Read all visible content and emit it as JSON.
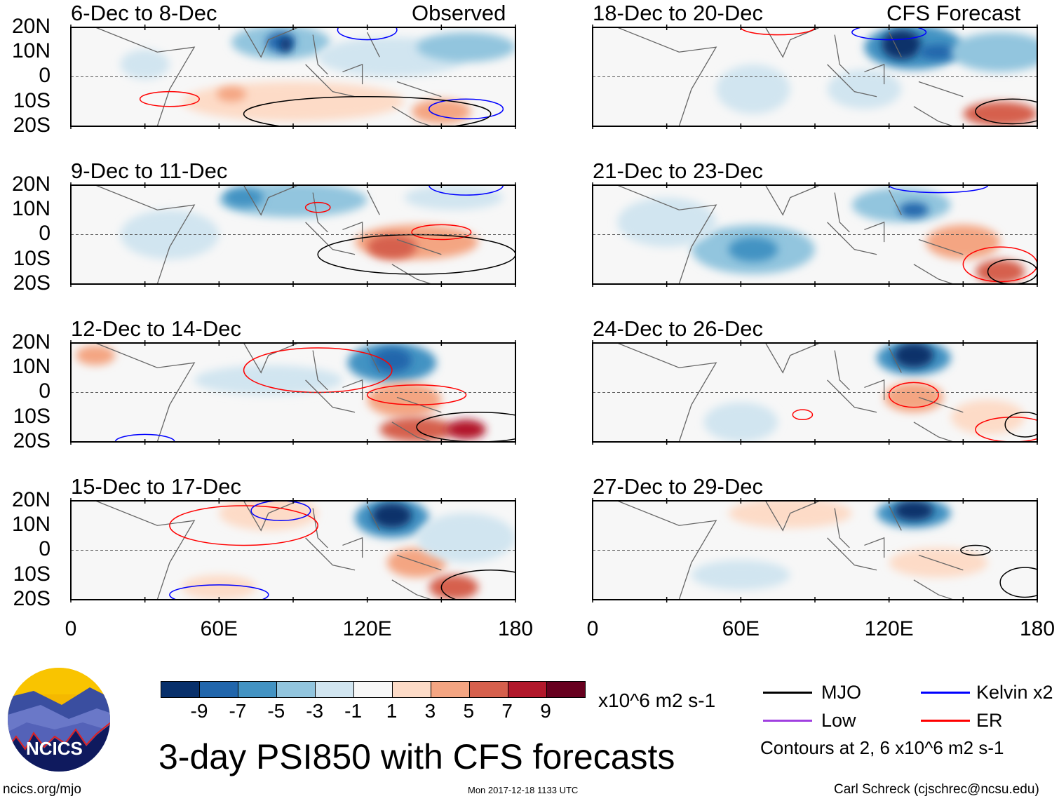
{
  "header": {
    "observed_label": "Observed",
    "forecast_label": "CFS Forecast"
  },
  "panels": {
    "left": [
      {
        "title": "6-Dec to 8-Dec"
      },
      {
        "title": "9-Dec to 11-Dec"
      },
      {
        "title": "12-Dec to 14-Dec"
      },
      {
        "title": "15-Dec to 17-Dec"
      }
    ],
    "right": [
      {
        "title": "18-Dec to 20-Dec"
      },
      {
        "title": "21-Dec to 23-Dec"
      },
      {
        "title": "24-Dec to 26-Dec"
      },
      {
        "title": "27-Dec to 29-Dec"
      }
    ]
  },
  "axes": {
    "lat_labels": [
      "20N",
      "10N",
      "0",
      "10S",
      "20S"
    ],
    "lon_labels": [
      "0",
      "60E",
      "120E",
      "180"
    ]
  },
  "colorbar": {
    "colors": [
      "#08306b",
      "#2166ac",
      "#4393c3",
      "#92c5de",
      "#d1e5f0",
      "#f7f7f7",
      "#fddbc7",
      "#f4a582",
      "#d6604d",
      "#b2182b",
      "#67001f"
    ],
    "labels": [
      "-9",
      "-7",
      "-5",
      "-3",
      "-1",
      "1",
      "3",
      "5",
      "7",
      "9"
    ],
    "units": "x10^6 m2 s-1"
  },
  "legend": {
    "items": [
      {
        "label": "MJO",
        "color": "#000000"
      },
      {
        "label": "Kelvin x2",
        "color": "#0000ff"
      },
      {
        "label": "Low",
        "color": "#a040e0"
      },
      {
        "label": "ER",
        "color": "#ff0000"
      }
    ],
    "contours_note": "Contours at 2, 6 x10^6 m2 s-1"
  },
  "title": "3-day PSI850 with CFS forecasts",
  "logo_text": "NCICS",
  "footer": {
    "url": "ncics.org/mjo",
    "timestamp": "Mon 2017-12-18 1133 UTC",
    "credit": "Carl Schreck (cjschrec@ncsu.edu)"
  }
}
